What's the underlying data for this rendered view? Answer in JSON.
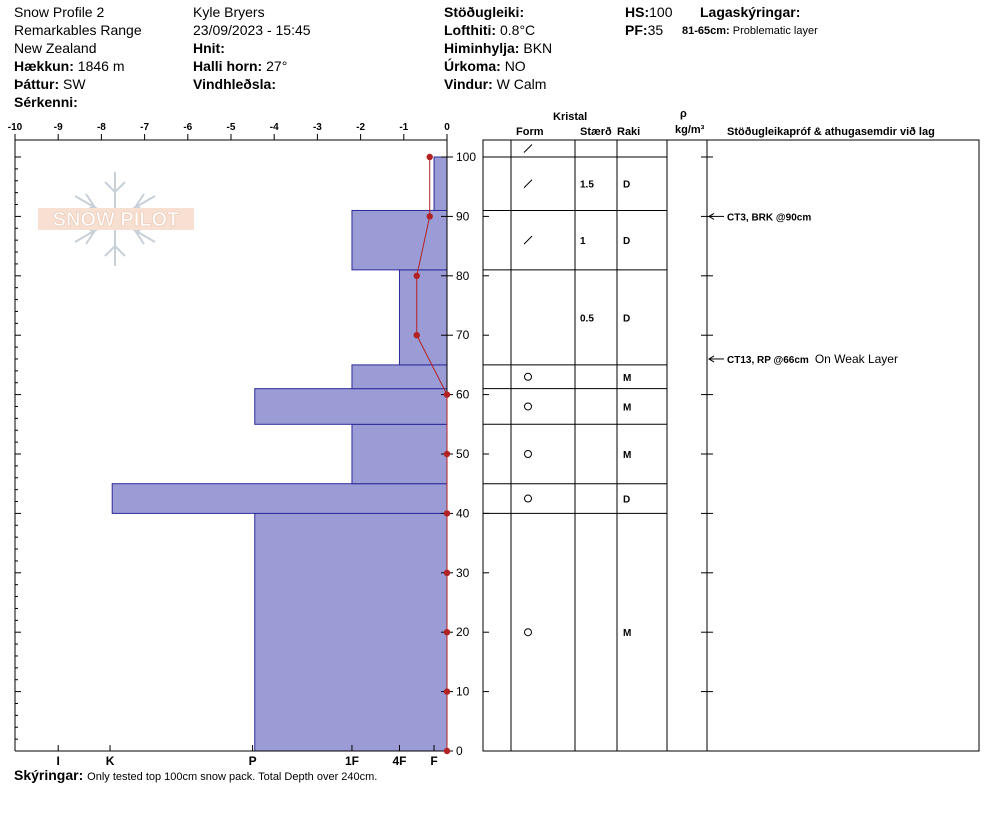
{
  "header": {
    "title": "Snow Profile 2",
    "location": "Remarkables Range",
    "country": "New Zealand",
    "elevation_label": "Hækkun:",
    "elevation_value": "1846 m",
    "aspect_label": "Þáttur:",
    "aspect_value": "SW",
    "features_label": "Sérkenni:",
    "observer": "Kyle Bryers",
    "datetime": "23/09/2023 - 15:45",
    "coords_label": "Hnit:",
    "slope_label": "Halli horn:",
    "slope_value": "27°",
    "wind_loading_label": "Vindhleðsla:",
    "stability_label": "Stöðugleiki:",
    "air_temp_label": "Lofthiti:",
    "air_temp_value": "0.8°C",
    "sky_label": "Himinhylja:",
    "sky_value": "BKN",
    "precip_label": "Úrkoma:",
    "precip_value": "NO",
    "wind_label": "Vindur:",
    "wind_value": "W Calm",
    "hs_label": "HS:",
    "hs_value": "100",
    "pf_label": "PF:",
    "pf_value": "35",
    "legend_label": "Lagaskýringar:",
    "problem_range": "81-65cm:",
    "problem_text": "Problematic layer"
  },
  "logo_text": "SNOW PILOT",
  "table_headers": {
    "crystal": "Kristal",
    "form": "Form",
    "size": "Stærð",
    "moisture": "Raki",
    "rho": "ρ",
    "density_unit": "kg/m³",
    "tests": "Stöðugleikapróf & athugasemdir við lag"
  },
  "footer": {
    "label": "Skýringar:",
    "text": "Only tested top 100cm snow pack. Total Depth over 240cm."
  },
  "chart_data": {
    "type": "snow_profile",
    "temperature_axis": {
      "ticks": [
        -10,
        -9,
        -8,
        -7,
        -6,
        -5,
        -4,
        -3,
        -2,
        -1,
        0
      ],
      "range": [
        -10,
        0
      ]
    },
    "depth_axis": {
      "ticks": [
        0,
        10,
        20,
        30,
        40,
        50,
        60,
        70,
        80,
        90,
        100
      ],
      "range": [
        0,
        100
      ]
    },
    "hardness_axis": {
      "labels": [
        "I",
        "K",
        "P",
        "1F",
        "4F",
        "F"
      ],
      "values": [
        -9,
        -7.8,
        -4.5,
        -2.2,
        -1.1,
        -0.3
      ]
    },
    "hardness_layers": [
      {
        "bottom": 0,
        "top": 40,
        "value": -4.45
      },
      {
        "bottom": 40,
        "top": 45,
        "value": -7.75
      },
      {
        "bottom": 45,
        "top": 55,
        "value": -2.2
      },
      {
        "bottom": 55,
        "top": 61,
        "value": -4.45
      },
      {
        "bottom": 61,
        "top": 65,
        "value": -2.2
      },
      {
        "bottom": 65,
        "top": 81,
        "value": -1.1
      },
      {
        "bottom": 81,
        "top": 91,
        "value": -2.2
      },
      {
        "bottom": 91,
        "top": 100,
        "value": -0.3
      }
    ],
    "temperature_profile": [
      {
        "depth": 0,
        "temp": 0
      },
      {
        "depth": 10,
        "temp": 0
      },
      {
        "depth": 20,
        "temp": 0
      },
      {
        "depth": 30,
        "temp": 0
      },
      {
        "depth": 40,
        "temp": 0
      },
      {
        "depth": 50,
        "temp": 0
      },
      {
        "depth": 60,
        "temp": 0
      },
      {
        "depth": 70,
        "temp": -0.7
      },
      {
        "depth": 80,
        "temp": -0.7
      },
      {
        "depth": 90,
        "temp": -0.4
      },
      {
        "depth": 100,
        "temp": -0.4
      }
    ],
    "layers": [
      {
        "bottom": 91,
        "top": 100,
        "form": "slash",
        "size": "1.5",
        "moisture": "D"
      },
      {
        "bottom": 81,
        "top": 91,
        "form": "slash",
        "size": "1",
        "moisture": "D"
      },
      {
        "bottom": 65,
        "top": 81,
        "form": "",
        "size": "0.5",
        "moisture": "D"
      },
      {
        "bottom": 61,
        "top": 65,
        "form": "circle",
        "size": "",
        "moisture": "M"
      },
      {
        "bottom": 55,
        "top": 61,
        "form": "circle",
        "size": "",
        "moisture": "M"
      },
      {
        "bottom": 45,
        "top": 55,
        "form": "circle",
        "size": "",
        "moisture": "M"
      },
      {
        "bottom": 40,
        "top": 45,
        "form": "circle",
        "size": "",
        "moisture": "D"
      },
      {
        "bottom": 0,
        "top": 40,
        "form": "circle",
        "size": "",
        "moisture": "M"
      }
    ],
    "top_form": "slash",
    "tests": [
      {
        "depth": 90,
        "code": "CT3, BRK @90cm",
        "comment": ""
      },
      {
        "depth": 66,
        "code": "CT13, RP @66cm",
        "comment": "On Weak Layer"
      }
    ]
  }
}
